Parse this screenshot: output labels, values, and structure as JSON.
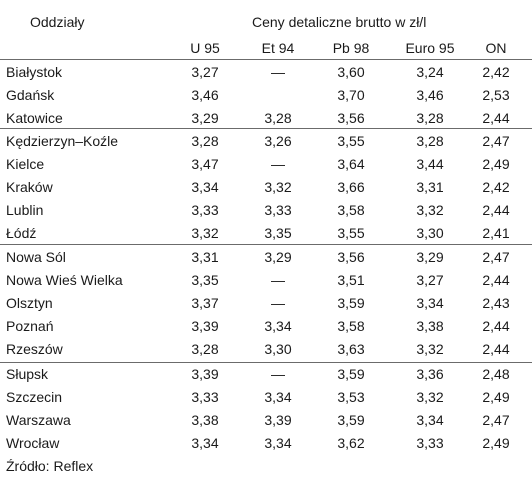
{
  "header": {
    "branches_label": "Oddziały",
    "prices_label": "Ceny detaliczne brutto w zł/l"
  },
  "columns": [
    "U 95",
    "Et 94",
    "Pb 98",
    "Euro 95",
    "ON"
  ],
  "rows": [
    {
      "city": "Białystok",
      "values": [
        "3,27",
        "—",
        "3,60",
        "3,24",
        "2,42"
      ]
    },
    {
      "city": "Gdańsk",
      "values": [
        "3,46",
        "",
        "3,70",
        "3,46",
        "2,53"
      ]
    },
    {
      "city": "Katowice",
      "values": [
        "3,29",
        "3,28",
        "3,56",
        "3,28",
        "2,44"
      ]
    },
    {
      "city": "Kędzierzyn–Koźle",
      "values": [
        "3,28",
        "3,26",
        "3,55",
        "3,28",
        "2,47"
      ]
    },
    {
      "city": "Kielce",
      "values": [
        "3,47",
        "—",
        "3,64",
        "3,44",
        "2,49"
      ]
    },
    {
      "city": "Kraków",
      "values": [
        "3,34",
        "3,32",
        "3,66",
        "3,31",
        "2,42"
      ]
    },
    {
      "city": "Lublin",
      "values": [
        "3,33",
        "3,33",
        "3,58",
        "3,32",
        "2,44"
      ]
    },
    {
      "city": "Łódź",
      "values": [
        "3,32",
        "3,35",
        "3,55",
        "3,30",
        "2,41"
      ]
    },
    {
      "city": "Nowa Sól",
      "values": [
        "3,31",
        "3,29",
        "3,56",
        "3,29",
        "2,47"
      ]
    },
    {
      "city": "Nowa Wieś Wielka",
      "values": [
        "3,35",
        "—",
        "3,51",
        "3,27",
        "2,44"
      ]
    },
    {
      "city": "Olsztyn",
      "values": [
        "3,37",
        "—",
        "3,59",
        "3,34",
        "2,43"
      ]
    },
    {
      "city": "Poznań",
      "values": [
        "3,39",
        "3,34",
        "3,58",
        "3,38",
        "2,44"
      ]
    },
    {
      "city": "Rzeszów",
      "values": [
        "3,28",
        "3,30",
        "3,63",
        "3,32",
        "2,44"
      ]
    },
    {
      "city": "Słupsk",
      "values": [
        "3,39",
        "—",
        "3,59",
        "3,36",
        "2,48"
      ]
    },
    {
      "city": "Szczecin",
      "values": [
        "3,33",
        "3,34",
        "3,53",
        "3,32",
        "2,49"
      ]
    },
    {
      "city": "Warszawa",
      "values": [
        "3,38",
        "3,39",
        "3,59",
        "3,34",
        "2,47"
      ]
    },
    {
      "city": "Wrocław",
      "values": [
        "3,34",
        "3,34",
        "3,62",
        "3,33",
        "2,49"
      ]
    }
  ],
  "source": "Źródło: Reflex"
}
